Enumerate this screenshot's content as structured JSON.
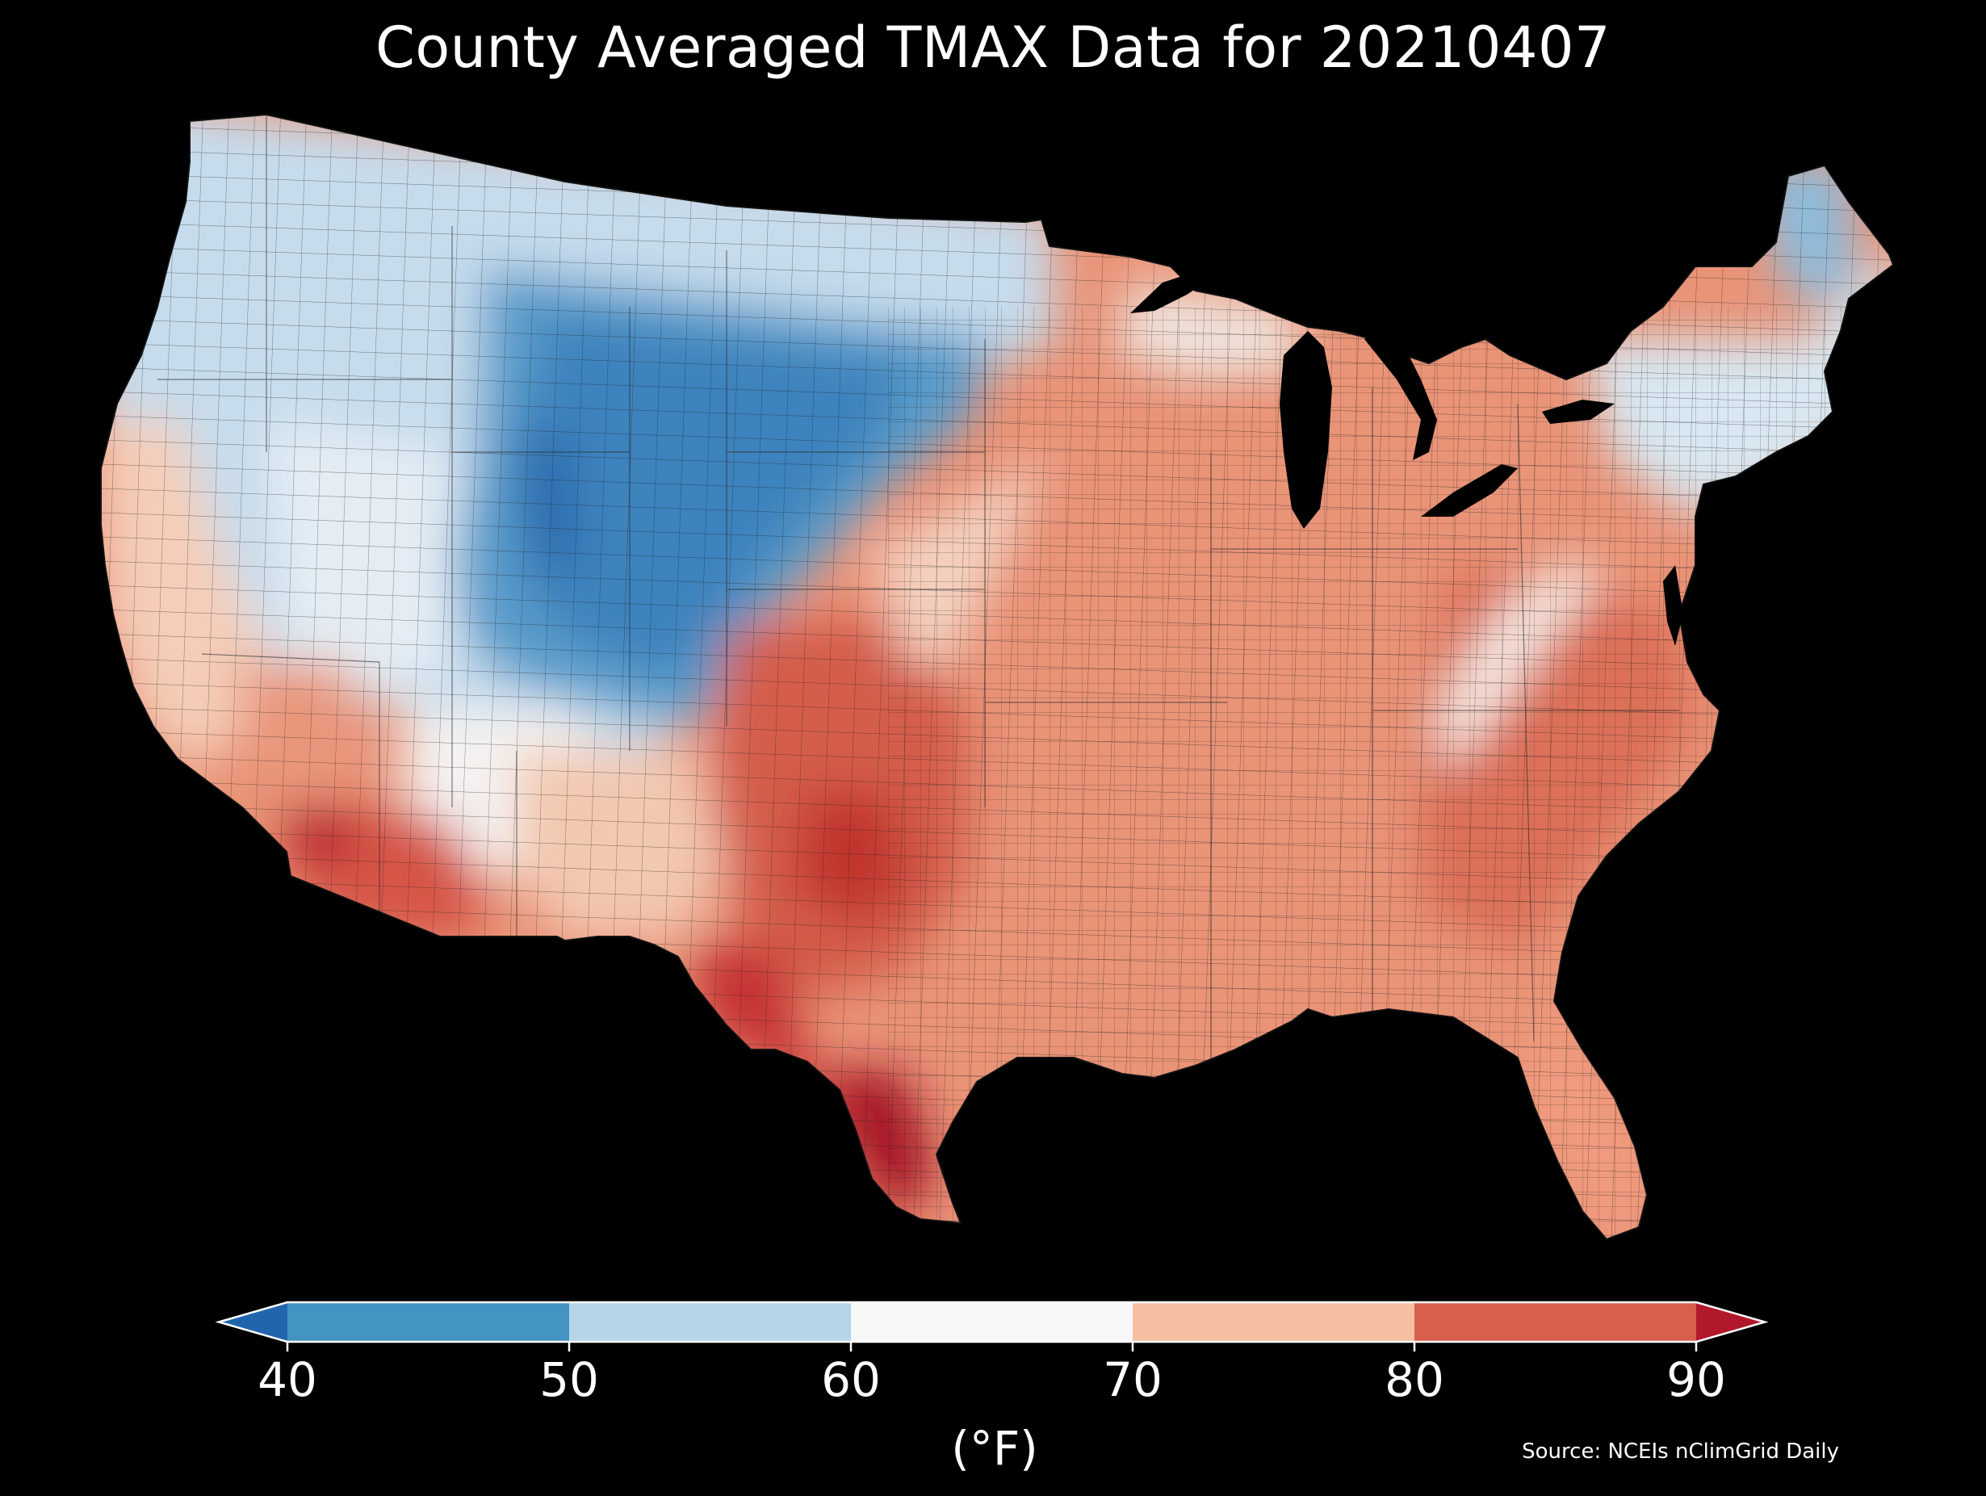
{
  "title": "County Averaged TMAX Data for 20210407",
  "colorbar": {
    "ticks": [
      "40",
      "50",
      "60",
      "70",
      "80",
      "90"
    ],
    "unit": "(°F)",
    "bins": [
      {
        "range": "<40",
        "color": "#2166ac"
      },
      {
        "range": "40-50",
        "color": "#4393c3"
      },
      {
        "range": "50-60",
        "color": "#b4d6e8"
      },
      {
        "range": "60-70",
        "color": "#f7f7f7"
      },
      {
        "range": "70-80",
        "color": "#f7bfa2"
      },
      {
        "range": "80-90",
        "color": "#d6604d"
      },
      {
        "range": ">90",
        "color": "#b2182b"
      }
    ]
  },
  "source": "Source: NCEIs nClimGrid Daily"
}
